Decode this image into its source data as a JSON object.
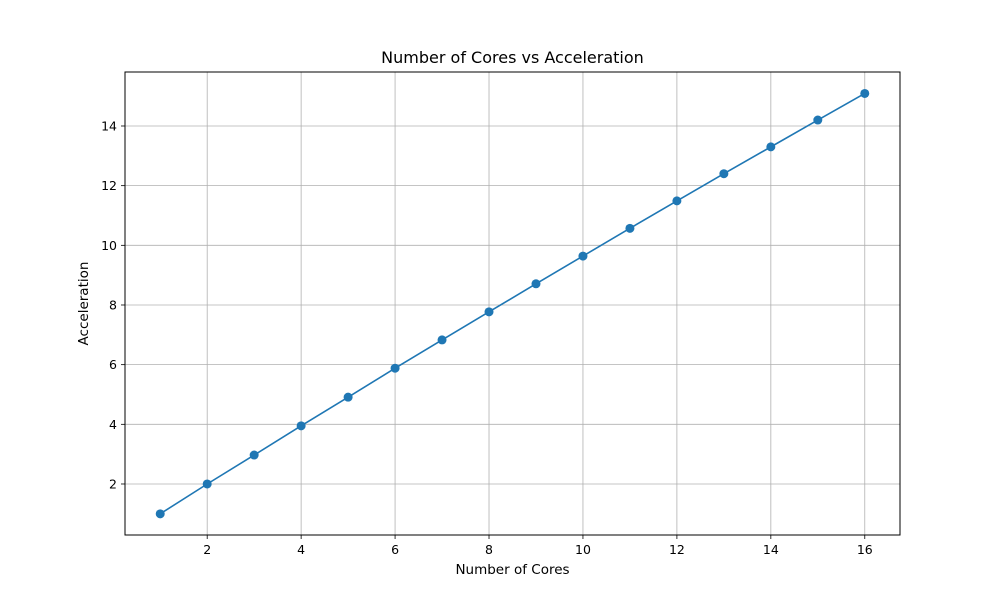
{
  "chart_data": {
    "type": "line",
    "title": "Number of Cores vs Acceleration",
    "xlabel": "Number of Cores",
    "ylabel": "Acceleration",
    "xlim": [
      0.25,
      16.75
    ],
    "ylim": [
      0.29,
      15.81
    ],
    "xticks": [
      2,
      4,
      6,
      8,
      10,
      12,
      14,
      16
    ],
    "yticks": [
      2,
      4,
      6,
      8,
      10,
      12,
      14
    ],
    "grid": true,
    "series": [
      {
        "color": "#1f77b4",
        "marker": "circle",
        "x": [
          1,
          2,
          3,
          4,
          5,
          6,
          7,
          8,
          9,
          10,
          11,
          12,
          13,
          14,
          15,
          16
        ],
        "y": [
          1.0,
          2.0,
          2.97,
          3.95,
          4.91,
          5.88,
          6.83,
          7.77,
          8.71,
          9.64,
          10.57,
          11.49,
          12.4,
          13.3,
          14.2,
          15.09
        ]
      }
    ]
  }
}
